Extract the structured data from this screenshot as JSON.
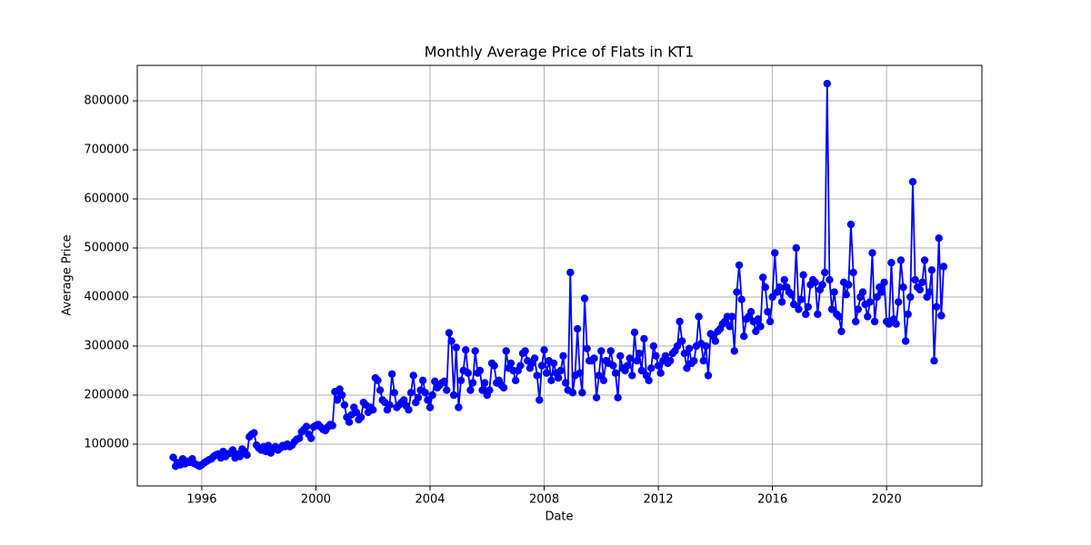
{
  "chart_data": {
    "type": "line",
    "title": "Monthly Average Price of Flats in KT1",
    "xlabel": "Date",
    "ylabel": "Average Price",
    "color": "#0000ff",
    "markers": true,
    "grid": true,
    "xlim": [
      1993.74,
      2023.34
    ],
    "xticks": [
      1996,
      2000,
      2004,
      2008,
      2012,
      2016,
      2020
    ],
    "ylim": [
      14800,
      872200
    ],
    "yticks": [
      100000,
      200000,
      300000,
      400000,
      500000,
      600000,
      700000,
      800000
    ],
    "x": [
      1995,
      1995.083,
      1995.167,
      1995.25,
      1995.333,
      1995.417,
      1995.5,
      1995.583,
      1995.667,
      1995.75,
      1995.833,
      1995.917,
      1996,
      1996.083,
      1996.167,
      1996.25,
      1996.333,
      1996.417,
      1996.5,
      1996.583,
      1996.667,
      1996.75,
      1996.833,
      1996.917,
      1997,
      1997.083,
      1997.167,
      1997.25,
      1997.333,
      1997.417,
      1997.5,
      1997.583,
      1997.667,
      1997.75,
      1997.833,
      1997.917,
      1998,
      1998.083,
      1998.167,
      1998.25,
      1998.333,
      1998.417,
      1998.5,
      1998.583,
      1998.667,
      1998.75,
      1998.833,
      1998.917,
      1999,
      1999.083,
      1999.167,
      1999.25,
      1999.333,
      1999.417,
      1999.5,
      1999.583,
      1999.667,
      1999.75,
      1999.833,
      1999.917,
      2000,
      2000.083,
      2000.167,
      2000.25,
      2000.333,
      2000.417,
      2000.5,
      2000.583,
      2000.667,
      2000.75,
      2000.833,
      2000.917,
      2001,
      2001.083,
      2001.167,
      2001.25,
      2001.333,
      2001.417,
      2001.5,
      2001.583,
      2001.667,
      2001.75,
      2001.833,
      2001.917,
      2002,
      2002.083,
      2002.167,
      2002.25,
      2002.333,
      2002.417,
      2002.5,
      2002.583,
      2002.667,
      2002.75,
      2002.833,
      2002.917,
      2003,
      2003.083,
      2003.167,
      2003.25,
      2003.333,
      2003.417,
      2003.5,
      2003.583,
      2003.667,
      2003.75,
      2003.833,
      2003.917,
      2004,
      2004.083,
      2004.167,
      2004.25,
      2004.333,
      2004.417,
      2004.5,
      2004.583,
      2004.667,
      2004.75,
      2004.833,
      2004.917,
      2005,
      2005.083,
      2005.167,
      2005.25,
      2005.333,
      2005.417,
      2005.5,
      2005.583,
      2005.667,
      2005.75,
      2005.833,
      2005.917,
      2006,
      2006.083,
      2006.167,
      2006.25,
      2006.333,
      2006.417,
      2006.5,
      2006.583,
      2006.667,
      2006.75,
      2006.833,
      2006.917,
      2007,
      2007.083,
      2007.167,
      2007.25,
      2007.333,
      2007.417,
      2007.5,
      2007.583,
      2007.667,
      2007.75,
      2007.833,
      2007.917,
      2008,
      2008.083,
      2008.167,
      2008.25,
      2008.333,
      2008.417,
      2008.5,
      2008.583,
      2008.667,
      2008.75,
      2008.833,
      2008.917,
      2009,
      2009.083,
      2009.167,
      2009.25,
      2009.333,
      2009.417,
      2009.5,
      2009.583,
      2009.667,
      2009.75,
      2009.833,
      2009.917,
      2010,
      2010.083,
      2010.167,
      2010.25,
      2010.333,
      2010.417,
      2010.5,
      2010.583,
      2010.667,
      2010.75,
      2010.833,
      2010.917,
      2011,
      2011.083,
      2011.167,
      2011.25,
      2011.333,
      2011.417,
      2011.5,
      2011.583,
      2011.667,
      2011.75,
      2011.833,
      2011.917,
      2012,
      2012.083,
      2012.167,
      2012.25,
      2012.333,
      2012.417,
      2012.5,
      2012.583,
      2012.667,
      2012.75,
      2012.833,
      2012.917,
      2013,
      2013.083,
      2013.167,
      2013.25,
      2013.333,
      2013.417,
      2013.5,
      2013.583,
      2013.667,
      2013.75,
      2013.833,
      2013.917,
      2014,
      2014.083,
      2014.167,
      2014.25,
      2014.333,
      2014.417,
      2014.5,
      2014.583,
      2014.667,
      2014.75,
      2014.833,
      2014.917,
      2015,
      2015.083,
      2015.167,
      2015.25,
      2015.333,
      2015.417,
      2015.5,
      2015.583,
      2015.667,
      2015.75,
      2015.833,
      2015.917,
      2016,
      2016.083,
      2016.167,
      2016.25,
      2016.333,
      2016.417,
      2016.5,
      2016.583,
      2016.667,
      2016.75,
      2016.833,
      2016.917,
      2017,
      2017.083,
      2017.167,
      2017.25,
      2017.333,
      2017.417,
      2017.5,
      2017.583,
      2017.667,
      2017.75,
      2017.833,
      2017.917,
      2018,
      2018.083,
      2018.167,
      2018.25,
      2018.333,
      2018.417,
      2018.5,
      2018.583,
      2018.667,
      2018.75,
      2018.833,
      2018.917,
      2019,
      2019.083,
      2019.167,
      2019.25,
      2019.333,
      2019.417,
      2019.5,
      2019.583,
      2019.667,
      2019.75,
      2019.833,
      2019.917,
      2020,
      2020.083,
      2020.167,
      2020.25,
      2020.333,
      2020.417,
      2020.5,
      2020.583,
      2020.667,
      2020.75,
      2020.833,
      2020.917,
      2021,
      2021.083,
      2021.167,
      2021.25,
      2021.333,
      2021.417,
      2021.5,
      2021.583,
      2021.667,
      2021.75,
      2021.833,
      2021.917,
      2022
    ],
    "values": [
      73000,
      55000,
      62000,
      58000,
      70000,
      60000,
      65000,
      63000,
      70000,
      60000,
      58000,
      55000,
      58000,
      62000,
      65000,
      68000,
      70000,
      75000,
      78000,
      80000,
      72000,
      85000,
      75000,
      80000,
      82000,
      88000,
      72000,
      80000,
      75000,
      90000,
      85000,
      78000,
      115000,
      120000,
      123000,
      98000,
      92000,
      88000,
      95000,
      85000,
      97000,
      82000,
      90000,
      95000,
      88000,
      92000,
      97000,
      95000,
      100000,
      95000,
      98000,
      105000,
      110000,
      112000,
      125000,
      130000,
      136000,
      120000,
      112000,
      135000,
      138000,
      140000,
      135000,
      130000,
      128000,
      135000,
      140000,
      138000,
      207000,
      190000,
      212000,
      200000,
      180000,
      155000,
      145000,
      160000,
      175000,
      165000,
      150000,
      155000,
      185000,
      180000,
      165000,
      175000,
      170000,
      235000,
      230000,
      210000,
      190000,
      185000,
      170000,
      180000,
      243000,
      205000,
      175000,
      180000,
      185000,
      190000,
      178000,
      170000,
      205000,
      240000,
      185000,
      195000,
      210000,
      230000,
      205000,
      190000,
      175000,
      200000,
      228000,
      215000,
      220000,
      225000,
      228000,
      210000,
      327000,
      310000,
      200000,
      297000,
      175000,
      230000,
      250000,
      292000,
      245000,
      210000,
      225000,
      290000,
      245000,
      250000,
      210000,
      225000,
      200000,
      210000,
      265000,
      260000,
      225000,
      230000,
      220000,
      215000,
      290000,
      255000,
      265000,
      250000,
      230000,
      250000,
      260000,
      285000,
      290000,
      270000,
      255000,
      265000,
      275000,
      240000,
      190000,
      260000,
      292000,
      245000,
      270000,
      230000,
      265000,
      245000,
      235000,
      250000,
      280000,
      225000,
      210000,
      450000,
      205000,
      240000,
      335000,
      245000,
      205000,
      397000,
      295000,
      270000,
      270000,
      275000,
      195000,
      240000,
      290000,
      230000,
      270000,
      265000,
      290000,
      260000,
      245000,
      195000,
      280000,
      255000,
      250000,
      260000,
      275000,
      240000,
      328000,
      270000,
      285000,
      250000,
      315000,
      240000,
      230000,
      255000,
      300000,
      280000,
      260000,
      245000,
      270000,
      280000,
      265000,
      270000,
      285000,
      290000,
      300000,
      350000,
      310000,
      285000,
      255000,
      295000,
      265000,
      270000,
      300000,
      360000,
      305000,
      270000,
      300000,
      240000,
      325000,
      320000,
      310000,
      330000,
      335000,
      345000,
      350000,
      360000,
      340000,
      360000,
      290000,
      410000,
      465000,
      395000,
      320000,
      355000,
      360000,
      370000,
      350000,
      330000,
      355000,
      340000,
      440000,
      420000,
      370000,
      350000,
      400000,
      490000,
      410000,
      420000,
      390000,
      435000,
      420000,
      410000,
      405000,
      385000,
      500000,
      375000,
      395000,
      445000,
      365000,
      380000,
      425000,
      435000,
      430000,
      365000,
      415000,
      425000,
      450000,
      835000,
      435000,
      375000,
      410000,
      365000,
      360000,
      330000,
      430000,
      405000,
      425000,
      548000,
      450000,
      350000,
      375000,
      400000,
      410000,
      385000,
      360000,
      390000,
      490000,
      350000,
      400000,
      420000,
      410000,
      430000,
      350000,
      345000,
      470000,
      355000,
      345000,
      390000,
      475000,
      420000,
      310000,
      365000,
      400000,
      635000,
      435000,
      420000,
      415000,
      430000,
      475000,
      400000,
      410000,
      455000,
      270000,
      380000,
      520000,
      362000,
      462000
    ]
  }
}
